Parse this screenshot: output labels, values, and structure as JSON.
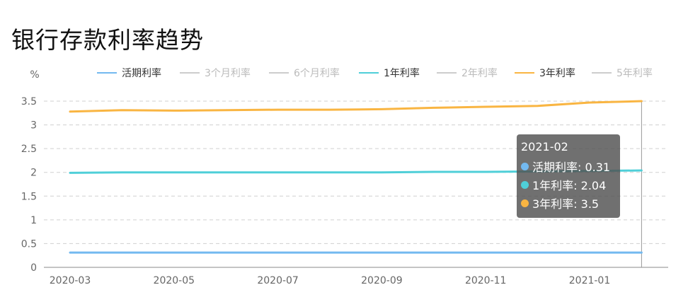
{
  "title": "银行存款利率趋势",
  "chart_data": {
    "type": "line",
    "ylabel": "%",
    "ylim": [
      0,
      3.5
    ],
    "yticks": [
      0,
      0.5,
      1,
      1.5,
      2,
      2.5,
      3,
      3.5
    ],
    "ytick_labels": [
      "0",
      "0.5",
      "1",
      "1.5",
      "2",
      "2.5",
      "3",
      "3.5"
    ],
    "x": [
      "2020-03",
      "2020-04",
      "2020-05",
      "2020-06",
      "2020-07",
      "2020-08",
      "2020-09",
      "2020-10",
      "2020-11",
      "2020-12",
      "2021-01",
      "2021-02"
    ],
    "xtick_labels": [
      "2020-03",
      "2020-05",
      "2020-07",
      "2020-09",
      "2020-11",
      "2021-01"
    ],
    "grid": true,
    "legend_position": "top",
    "legend": [
      {
        "name": "活期利率",
        "color": "#73b9f0",
        "active": true
      },
      {
        "name": "3个月利率",
        "color": "#cccccc",
        "active": false
      },
      {
        "name": "6个月利率",
        "color": "#cccccc",
        "active": false
      },
      {
        "name": "1年利率",
        "color": "#4fcfd8",
        "active": true
      },
      {
        "name": "2年利率",
        "color": "#cccccc",
        "active": false
      },
      {
        "name": "3年利率",
        "color": "#f9b542",
        "active": true
      },
      {
        "name": "5年利率",
        "color": "#cccccc",
        "active": false
      }
    ],
    "series": [
      {
        "name": "活期利率",
        "color": "#73b9f0",
        "values": [
          0.31,
          0.31,
          0.31,
          0.31,
          0.31,
          0.31,
          0.31,
          0.31,
          0.31,
          0.31,
          0.31,
          0.31
        ]
      },
      {
        "name": "1年利率",
        "color": "#4fcfd8",
        "values": [
          1.99,
          2.0,
          2.0,
          2.0,
          2.0,
          2.0,
          2.0,
          2.01,
          2.01,
          2.02,
          2.03,
          2.04
        ]
      },
      {
        "name": "3年利率",
        "color": "#f9b542",
        "values": [
          3.28,
          3.31,
          3.3,
          3.31,
          3.32,
          3.32,
          3.33,
          3.36,
          3.38,
          3.4,
          3.47,
          3.5
        ]
      }
    ]
  },
  "tooltip": {
    "title": "2021-02",
    "rows": [
      {
        "label": "活期利率: 0.31",
        "color": "#73b9f0"
      },
      {
        "label": "1年利率: 2.04",
        "color": "#4fcfd8"
      },
      {
        "label": "3年利率: 3.5",
        "color": "#f9b542"
      }
    ]
  }
}
